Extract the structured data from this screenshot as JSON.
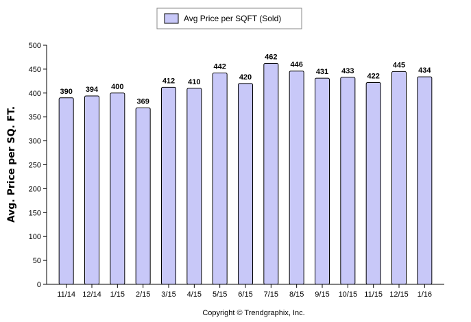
{
  "chart_data": {
    "type": "bar",
    "title": "",
    "xlabel": "",
    "ylabel": "Avg. Price per SQ. FT.",
    "ylim": [
      0,
      500
    ],
    "yticks": [
      0,
      50,
      100,
      150,
      200,
      250,
      300,
      350,
      400,
      450,
      500
    ],
    "categories": [
      "11/14",
      "12/14",
      "1/15",
      "2/15",
      "3/15",
      "4/15",
      "5/15",
      "6/15",
      "7/15",
      "8/15",
      "9/15",
      "10/15",
      "11/15",
      "12/15",
      "1/16"
    ],
    "series": [
      {
        "name": "Avg Price per SQFT (Sold)",
        "values": [
          390,
          394,
          400,
          369,
          412,
          410,
          442,
          420,
          462,
          446,
          431,
          433,
          422,
          445,
          434
        ],
        "color": "#c8c8f8"
      }
    ],
    "data_labels": true,
    "legend": "top-center",
    "grid": false
  },
  "colors": {
    "bar_fill": "#c8c8f8",
    "bar_stroke": "#000000",
    "axis": "#000000"
  },
  "copyright": "Copyright © Trendgraphix, Inc."
}
